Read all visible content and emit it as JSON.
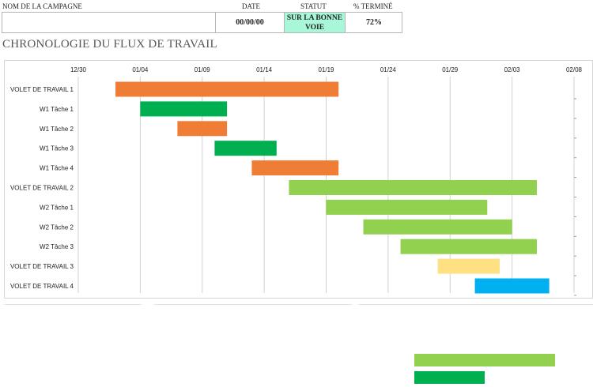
{
  "header": {
    "campaign_label": "NOM DE LA CAMPAGNE",
    "date_label": "DATE",
    "status_label": "STATUT",
    "pct_label": "% TERMINÉ",
    "campaign_value": "",
    "date_value": "00/00/00",
    "status_value": "SUR LA BONNE VOIE",
    "pct_value": "72%",
    "status_color": "#a7f7d8"
  },
  "section_title": "CHRONOLOGIE DU FLUX DE TRAVAIL",
  "chart_data": {
    "type": "gantt",
    "title": "",
    "xlabel": "",
    "ylabel": "",
    "x_ticks": [
      "12/30",
      "01/04",
      "01/09",
      "01/14",
      "01/19",
      "01/24",
      "01/29",
      "02/03",
      "02/08"
    ],
    "x_range": [
      "12/30",
      "02/08"
    ],
    "grid": "vertical",
    "tasks": [
      {
        "label": "VOLET DE TRAVAIL 1",
        "start": "01/02",
        "end": "01/20",
        "color": "#f07d35"
      },
      {
        "label": "W1 Tâche 1",
        "start": "01/04",
        "end": "01/11",
        "color": "#00b050"
      },
      {
        "label": "W1 Tâche 2",
        "start": "01/07",
        "end": "01/11",
        "color": "#f07d35"
      },
      {
        "label": "W1 Tâche 3",
        "start": "01/10",
        "end": "01/15",
        "color": "#00b050"
      },
      {
        "label": "W1 Tâche 4",
        "start": "01/13",
        "end": "01/20",
        "color": "#f07d35"
      },
      {
        "label": "VOLET DE TRAVAIL 2",
        "start": "01/16",
        "end": "02/05",
        "color": "#92d050"
      },
      {
        "label": "W2 Tâche 1",
        "start": "01/19",
        "end": "02/01",
        "color": "#92d050"
      },
      {
        "label": "W2 Tâche 2",
        "start": "01/22",
        "end": "02/03",
        "color": "#92d050"
      },
      {
        "label": "W2 Tâche 3",
        "start": "01/25",
        "end": "02/05",
        "color": "#92d050"
      },
      {
        "label": "VOLET DE TRAVAIL 3",
        "start": "01/28",
        "end": "02/02",
        "color": "#ffe082"
      },
      {
        "label": "VOLET DE TRAVAIL 4",
        "start": "01/31",
        "end": "02/06",
        "color": "#00b0f0"
      }
    ]
  },
  "legend_swatches": [
    {
      "color": "#92d050"
    },
    {
      "color": "#00b050"
    }
  ]
}
